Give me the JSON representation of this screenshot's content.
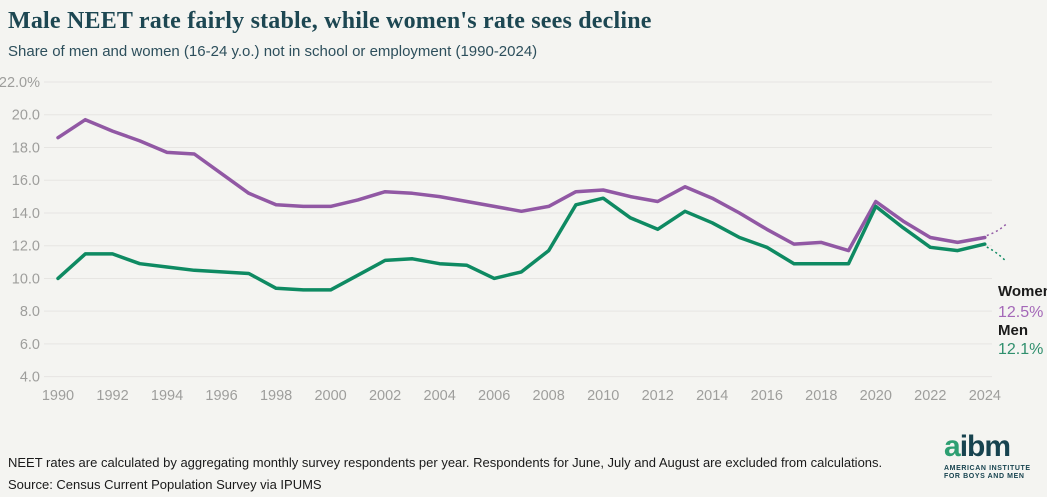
{
  "header": {
    "title": "Male NEET rate fairly stable, while women's rate sees decline",
    "subtitle": "Share of men and women (16-24 y.o.) not in school or employment (1990-2024)"
  },
  "chart_data": {
    "type": "line",
    "title": "Male NEET rate fairly stable, while women's rate sees decline",
    "subtitle": "Share of men and women (16-24 y.o.) not in school or employment (1990-2024)",
    "x": [
      1990,
      1991,
      1992,
      1993,
      1994,
      1995,
      1996,
      1997,
      1998,
      1999,
      2000,
      2001,
      2002,
      2003,
      2004,
      2005,
      2006,
      2007,
      2008,
      2009,
      2010,
      2011,
      2012,
      2013,
      2014,
      2015,
      2016,
      2017,
      2018,
      2019,
      2020,
      2021,
      2022,
      2023,
      2024
    ],
    "series": [
      {
        "name": "Women",
        "color": "#9158a4",
        "end_label": "Women",
        "end_value_label": "12.5%",
        "values": [
          18.6,
          19.7,
          19.0,
          18.4,
          17.7,
          17.6,
          16.4,
          15.2,
          14.5,
          14.4,
          14.4,
          14.8,
          15.3,
          15.2,
          15.0,
          14.7,
          14.4,
          14.1,
          14.4,
          15.3,
          15.4,
          15.0,
          14.7,
          15.6,
          14.9,
          14.0,
          13.0,
          12.1,
          12.2,
          11.7,
          14.7,
          13.5,
          12.5,
          12.2,
          12.5
        ]
      },
      {
        "name": "Men",
        "color": "#0e8a62",
        "end_label": "Men",
        "end_value_label": "12.1%",
        "values": [
          10.0,
          11.5,
          11.5,
          10.9,
          10.7,
          10.5,
          10.4,
          10.3,
          9.4,
          9.3,
          9.3,
          10.2,
          11.1,
          11.2,
          10.9,
          10.8,
          10.0,
          10.4,
          11.7,
          14.5,
          14.9,
          13.7,
          13.0,
          14.1,
          13.4,
          12.5,
          11.9,
          10.9,
          10.9,
          10.9,
          14.4,
          13.1,
          11.9,
          11.7,
          12.1
        ]
      }
    ],
    "ylim": [
      4,
      22
    ],
    "yticks": [
      22,
      20,
      18,
      16,
      14,
      12,
      10,
      8,
      6,
      4
    ],
    "ytick_labels": [
      "22.0%",
      "20.0",
      "18.0",
      "16.0",
      "14.0",
      "12.0",
      "10.0",
      "8.0",
      "6.0",
      "4.0"
    ],
    "xticks": [
      1990,
      1992,
      1994,
      1996,
      1998,
      2000,
      2002,
      2004,
      2006,
      2008,
      2010,
      2012,
      2014,
      2016,
      2018,
      2020,
      2022,
      2024
    ],
    "xtick_labels": [
      "1990",
      "1992",
      "1994",
      "1996",
      "1998",
      "2000",
      "2002",
      "2004",
      "2006",
      "2008",
      "2010",
      "2012",
      "2014",
      "2016",
      "2018",
      "2020",
      "2022",
      "2024"
    ],
    "grid": "horizontal",
    "legend_position": "right-end-labels"
  },
  "end_labels": {
    "women_name": "Women",
    "women_value": "12.5%",
    "men_name": "Men",
    "men_value": "12.1%"
  },
  "footer": {
    "note": "NEET rates are calculated by aggregating monthly survey respondents per year. Respondents for June, July and August are excluded from calculations.",
    "source": "Source: Census Current Population Survey via IPUMS"
  },
  "logo": {
    "wordmark_first": "a",
    "wordmark_rest": "ibm",
    "tagline_line1": "AMERICAN INSTITUTE",
    "tagline_line2": "FOR BOYS AND MEN"
  },
  "colors": {
    "background": "#f4f4f1",
    "gridline": "#e6e5e2",
    "axis_label": "#9e9e9c",
    "title": "#1d4752",
    "women_line": "#9158a4",
    "men_line": "#0e8a62",
    "women_value_text": "#a468b8",
    "men_value_text": "#2f8f6d",
    "logo_green": "#2d9f72",
    "logo_dark": "#17434f"
  }
}
